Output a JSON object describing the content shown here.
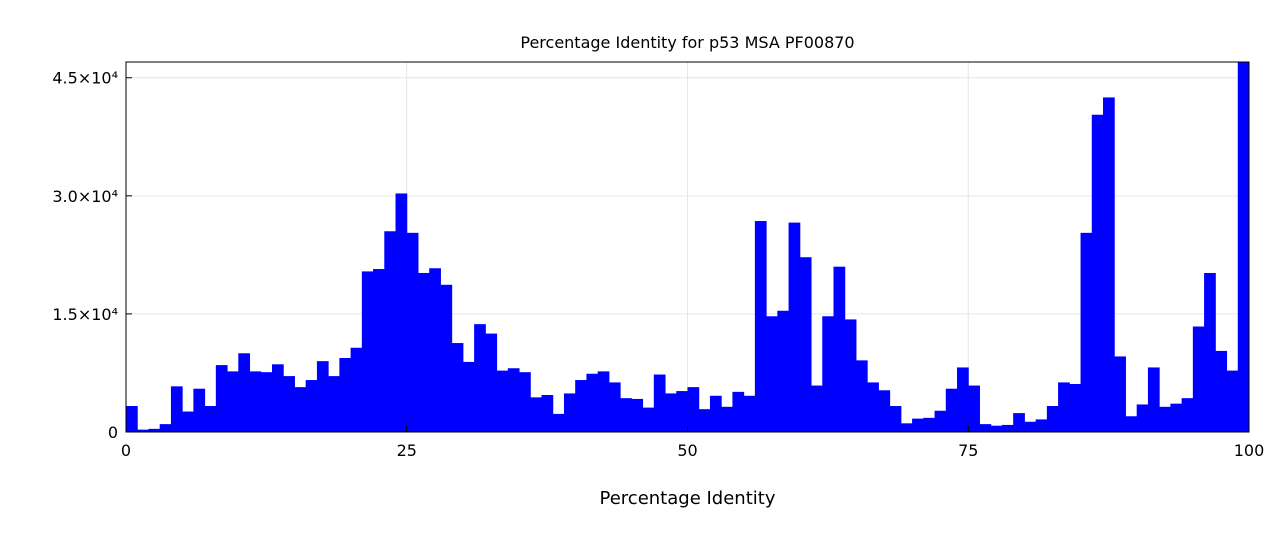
{
  "chart_data": {
    "type": "bar",
    "title": "Percentage Identity for p53 MSA PF00870",
    "xlabel": "Percentage Identity",
    "ylabel": "",
    "xlim": [
      0,
      100
    ],
    "ylim": [
      0,
      47000
    ],
    "x_ticks": [
      0,
      25,
      50,
      75,
      100
    ],
    "x_tick_labels": [
      "0",
      "25",
      "50",
      "75",
      "100"
    ],
    "y_ticks": [
      0,
      15000,
      30000,
      45000
    ],
    "y_tick_labels": [
      "0",
      "1.5×10⁴",
      "3.0×10⁴",
      "4.5×10⁴"
    ],
    "grid": true,
    "color": "#0000ff",
    "bin_width": 1,
    "bin_starts": [
      0,
      1,
      2,
      3,
      4,
      5,
      6,
      7,
      8,
      9,
      10,
      11,
      12,
      13,
      14,
      15,
      16,
      17,
      18,
      19,
      20,
      21,
      22,
      23,
      24,
      25,
      26,
      27,
      28,
      29,
      30,
      31,
      32,
      33,
      34,
      35,
      36,
      37,
      38,
      39,
      40,
      41,
      42,
      43,
      44,
      45,
      46,
      47,
      48,
      49,
      50,
      51,
      52,
      53,
      54,
      55,
      56,
      57,
      58,
      59,
      60,
      61,
      62,
      63,
      64,
      65,
      66,
      67,
      68,
      69,
      70,
      71,
      72,
      73,
      74,
      75,
      76,
      77,
      78,
      79,
      80,
      81,
      82,
      83,
      84,
      85,
      86,
      87,
      88,
      89,
      90,
      91,
      92,
      93,
      94,
      95,
      96,
      97,
      98,
      99
    ],
    "values": [
      3300,
      300,
      400,
      1000,
      5800,
      2600,
      5500,
      3300,
      8500,
      7700,
      10000,
      7700,
      7600,
      8600,
      7100,
      5700,
      6600,
      9000,
      7100,
      9400,
      10700,
      20400,
      20700,
      25500,
      30300,
      25300,
      20200,
      20800,
      18700,
      11300,
      8900,
      13700,
      12500,
      7800,
      8100,
      7600,
      4400,
      4700,
      2300,
      4900,
      6600,
      7400,
      7700,
      6300,
      4300,
      4200,
      3100,
      7300,
      4900,
      5200,
      5700,
      2900,
      4600,
      3200,
      5100,
      4600,
      26800,
      14700,
      15400,
      26600,
      22200,
      5900,
      14700,
      21000,
      14300,
      9100,
      6300,
      5300,
      3300,
      1100,
      1700,
      1800,
      2700,
      5500,
      8200,
      5900,
      1000,
      800,
      900,
      2400,
      1300,
      1600,
      3300,
      6300,
      6100,
      25300,
      40300,
      42500,
      9600,
      2000,
      3500,
      8200,
      3200,
      3600,
      4300,
      13400,
      20200,
      10300,
      7800,
      47000
    ]
  }
}
